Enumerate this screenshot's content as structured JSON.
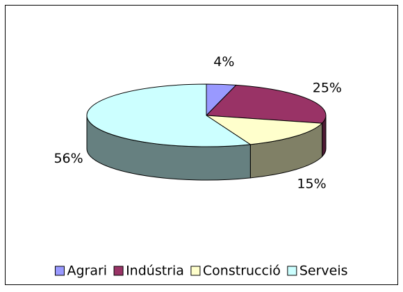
{
  "chart_data": {
    "type": "pie3d",
    "categories": [
      "Agrari",
      "Indústria",
      "Construcció",
      "Serveis"
    ],
    "values": [
      4,
      25,
      15,
      56
    ],
    "value_labels": [
      "4%",
      "25%",
      "15%",
      "56%"
    ],
    "colors": [
      "#9999ff",
      "#993366",
      "#ffffcc",
      "#ccffff"
    ],
    "legend": "bottom"
  }
}
